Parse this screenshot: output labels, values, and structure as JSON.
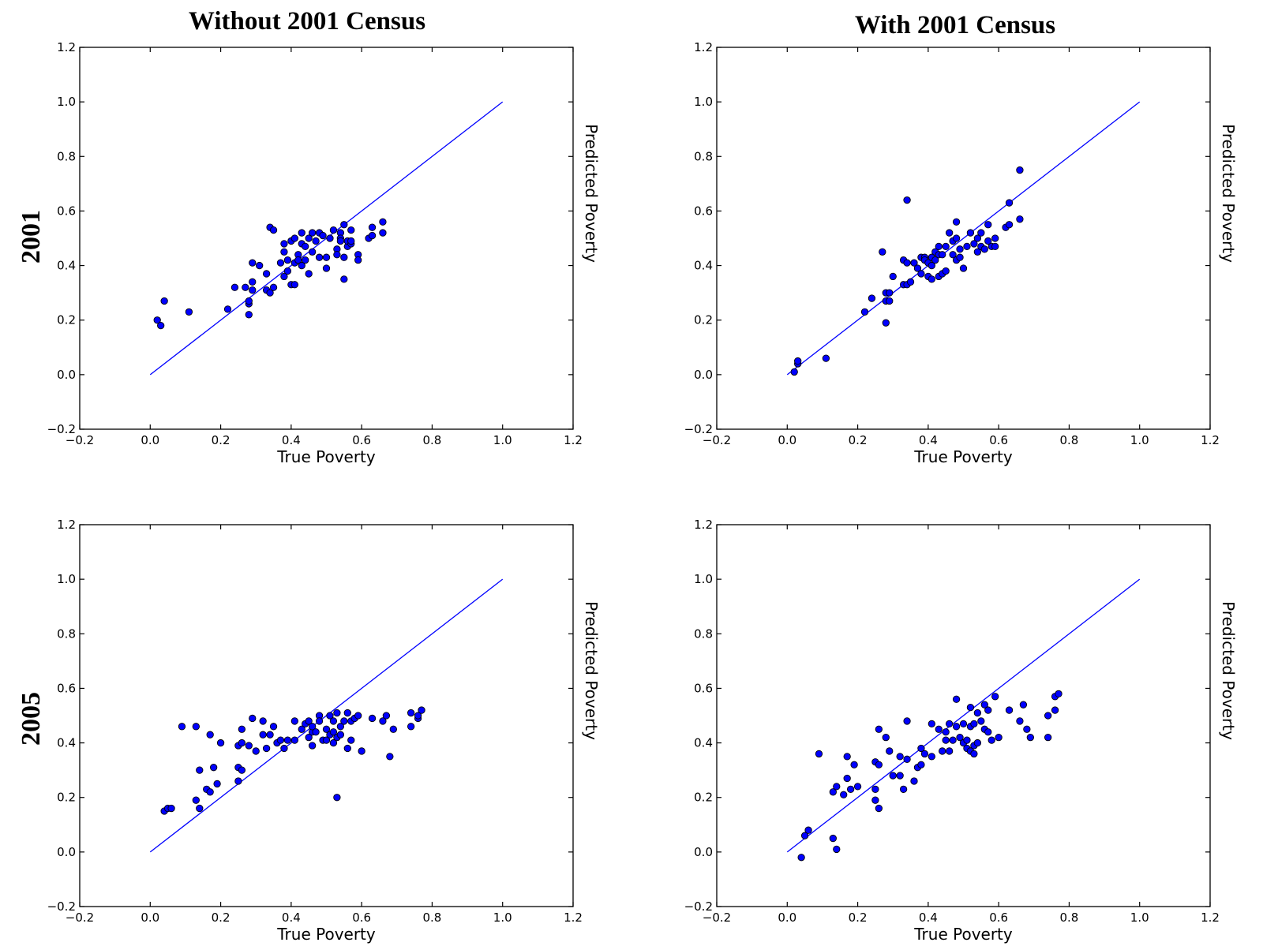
{
  "column_titles": [
    "Without 2001 Census",
    "With 2001 Census"
  ],
  "row_labels": [
    "2001",
    "2005"
  ],
  "colors": {
    "points": "#0000ff",
    "reference_line": "#0000ff",
    "point_edge": "#000000"
  },
  "chart_data": [
    {
      "type": "scatter",
      "title": "",
      "row": "2001",
      "column": "Without 2001 Census",
      "xlabel": "True Poverty",
      "ylabel": "Predicted Poverty",
      "xlim": [
        -0.2,
        1.2
      ],
      "ylim": [
        -0.2,
        1.2
      ],
      "xticks": [
        "−0.2",
        "0.0",
        "0.2",
        "0.4",
        "0.6",
        "0.8",
        "1.0",
        "1.2"
      ],
      "yticks": [
        "−0.2",
        "0.0",
        "0.2",
        "0.4",
        "0.6",
        "0.8",
        "1.0",
        "1.2"
      ],
      "reference_line": [
        [
          0,
          0
        ],
        [
          1,
          1
        ]
      ],
      "grid": false,
      "points": [
        [
          0.02,
          0.2
        ],
        [
          0.03,
          0.18
        ],
        [
          0.04,
          0.27
        ],
        [
          0.11,
          0.23
        ],
        [
          0.22,
          0.24
        ],
        [
          0.24,
          0.32
        ],
        [
          0.27,
          0.32
        ],
        [
          0.28,
          0.26
        ],
        [
          0.28,
          0.27
        ],
        [
          0.28,
          0.22
        ],
        [
          0.29,
          0.41
        ],
        [
          0.29,
          0.31
        ],
        [
          0.29,
          0.34
        ],
        [
          0.31,
          0.4
        ],
        [
          0.33,
          0.31
        ],
        [
          0.33,
          0.37
        ],
        [
          0.34,
          0.3
        ],
        [
          0.34,
          0.54
        ],
        [
          0.35,
          0.53
        ],
        [
          0.35,
          0.32
        ],
        [
          0.37,
          0.41
        ],
        [
          0.38,
          0.45
        ],
        [
          0.38,
          0.36
        ],
        [
          0.38,
          0.48
        ],
        [
          0.39,
          0.38
        ],
        [
          0.39,
          0.42
        ],
        [
          0.4,
          0.49
        ],
        [
          0.4,
          0.33
        ],
        [
          0.41,
          0.33
        ],
        [
          0.41,
          0.5
        ],
        [
          0.41,
          0.41
        ],
        [
          0.42,
          0.44
        ],
        [
          0.42,
          0.42
        ],
        [
          0.43,
          0.52
        ],
        [
          0.43,
          0.4
        ],
        [
          0.43,
          0.48
        ],
        [
          0.44,
          0.47
        ],
        [
          0.44,
          0.42
        ],
        [
          0.45,
          0.37
        ],
        [
          0.45,
          0.5
        ],
        [
          0.46,
          0.52
        ],
        [
          0.46,
          0.45
        ],
        [
          0.47,
          0.49
        ],
        [
          0.48,
          0.52
        ],
        [
          0.48,
          0.43
        ],
        [
          0.49,
          0.51
        ],
        [
          0.5,
          0.39
        ],
        [
          0.5,
          0.43
        ],
        [
          0.51,
          0.5
        ],
        [
          0.52,
          0.53
        ],
        [
          0.53,
          0.46
        ],
        [
          0.53,
          0.44
        ],
        [
          0.54,
          0.52
        ],
        [
          0.54,
          0.5
        ],
        [
          0.54,
          0.49
        ],
        [
          0.55,
          0.35
        ],
        [
          0.55,
          0.55
        ],
        [
          0.55,
          0.43
        ],
        [
          0.56,
          0.47
        ],
        [
          0.56,
          0.49
        ],
        [
          0.57,
          0.48
        ],
        [
          0.57,
          0.53
        ],
        [
          0.57,
          0.49
        ],
        [
          0.59,
          0.44
        ],
        [
          0.59,
          0.42
        ],
        [
          0.62,
          0.5
        ],
        [
          0.63,
          0.51
        ],
        [
          0.63,
          0.54
        ],
        [
          0.66,
          0.56
        ],
        [
          0.66,
          0.52
        ]
      ]
    },
    {
      "type": "scatter",
      "title": "",
      "row": "2001",
      "column": "With 2001 Census",
      "xlabel": "True Poverty",
      "ylabel": "Predicted Poverty",
      "xlim": [
        -0.2,
        1.2
      ],
      "ylim": [
        -0.2,
        1.2
      ],
      "xticks": [
        "−0.2",
        "0.0",
        "0.2",
        "0.4",
        "0.6",
        "0.8",
        "1.0",
        "1.2"
      ],
      "yticks": [
        "−0.2",
        "0.0",
        "0.2",
        "0.4",
        "0.6",
        "0.8",
        "1.0",
        "1.2"
      ],
      "reference_line": [
        [
          0,
          0
        ],
        [
          1,
          1
        ]
      ],
      "grid": false,
      "points": [
        [
          0.02,
          0.01
        ],
        [
          0.03,
          0.04
        ],
        [
          0.03,
          0.05
        ],
        [
          0.11,
          0.06
        ],
        [
          0.22,
          0.23
        ],
        [
          0.24,
          0.28
        ],
        [
          0.27,
          0.45
        ],
        [
          0.28,
          0.19
        ],
        [
          0.28,
          0.27
        ],
        [
          0.28,
          0.3
        ],
        [
          0.29,
          0.27
        ],
        [
          0.29,
          0.3
        ],
        [
          0.3,
          0.36
        ],
        [
          0.33,
          0.33
        ],
        [
          0.33,
          0.42
        ],
        [
          0.34,
          0.64
        ],
        [
          0.34,
          0.33
        ],
        [
          0.34,
          0.41
        ],
        [
          0.35,
          0.34
        ],
        [
          0.36,
          0.41
        ],
        [
          0.37,
          0.39
        ],
        [
          0.38,
          0.43
        ],
        [
          0.38,
          0.37
        ],
        [
          0.39,
          0.43
        ],
        [
          0.39,
          0.42
        ],
        [
          0.4,
          0.36
        ],
        [
          0.4,
          0.41
        ],
        [
          0.41,
          0.43
        ],
        [
          0.41,
          0.35
        ],
        [
          0.41,
          0.4
        ],
        [
          0.42,
          0.45
        ],
        [
          0.42,
          0.42
        ],
        [
          0.43,
          0.44
        ],
        [
          0.43,
          0.47
        ],
        [
          0.43,
          0.36
        ],
        [
          0.44,
          0.44
        ],
        [
          0.44,
          0.37
        ],
        [
          0.45,
          0.47
        ],
        [
          0.45,
          0.38
        ],
        [
          0.46,
          0.52
        ],
        [
          0.47,
          0.49
        ],
        [
          0.47,
          0.44
        ],
        [
          0.48,
          0.5
        ],
        [
          0.48,
          0.56
        ],
        [
          0.48,
          0.42
        ],
        [
          0.49,
          0.43
        ],
        [
          0.49,
          0.46
        ],
        [
          0.5,
          0.39
        ],
        [
          0.51,
          0.47
        ],
        [
          0.52,
          0.52
        ],
        [
          0.53,
          0.48
        ],
        [
          0.54,
          0.45
        ],
        [
          0.54,
          0.5
        ],
        [
          0.55,
          0.47
        ],
        [
          0.55,
          0.52
        ],
        [
          0.56,
          0.46
        ],
        [
          0.57,
          0.55
        ],
        [
          0.57,
          0.49
        ],
        [
          0.58,
          0.47
        ],
        [
          0.59,
          0.5
        ],
        [
          0.59,
          0.47
        ],
        [
          0.62,
          0.54
        ],
        [
          0.63,
          0.55
        ],
        [
          0.63,
          0.63
        ],
        [
          0.66,
          0.75
        ],
        [
          0.66,
          0.57
        ]
      ]
    },
    {
      "type": "scatter",
      "title": "",
      "row": "2005",
      "column": "Without 2001 Census",
      "xlabel": "True Poverty",
      "ylabel": "Predicted Poverty",
      "xlim": [
        -0.2,
        1.2
      ],
      "ylim": [
        -0.2,
        1.2
      ],
      "xticks": [
        "−0.2",
        "0.0",
        "0.2",
        "0.4",
        "0.6",
        "0.8",
        "1.0",
        "1.2"
      ],
      "yticks": [
        "−0.2",
        "0.0",
        "0.2",
        "0.4",
        "0.6",
        "0.8",
        "1.0",
        "1.2"
      ],
      "reference_line": [
        [
          0,
          0
        ],
        [
          1,
          1
        ]
      ],
      "grid": false,
      "points": [
        [
          0.04,
          0.15
        ],
        [
          0.05,
          0.16
        ],
        [
          0.06,
          0.16
        ],
        [
          0.09,
          0.46
        ],
        [
          0.13,
          0.19
        ],
        [
          0.13,
          0.46
        ],
        [
          0.14,
          0.3
        ],
        [
          0.14,
          0.16
        ],
        [
          0.16,
          0.23
        ],
        [
          0.17,
          0.43
        ],
        [
          0.17,
          0.22
        ],
        [
          0.18,
          0.31
        ],
        [
          0.19,
          0.25
        ],
        [
          0.2,
          0.4
        ],
        [
          0.25,
          0.26
        ],
        [
          0.25,
          0.31
        ],
        [
          0.25,
          0.39
        ],
        [
          0.26,
          0.4
        ],
        [
          0.26,
          0.3
        ],
        [
          0.26,
          0.45
        ],
        [
          0.28,
          0.39
        ],
        [
          0.29,
          0.49
        ],
        [
          0.3,
          0.37
        ],
        [
          0.32,
          0.48
        ],
        [
          0.32,
          0.43
        ],
        [
          0.33,
          0.38
        ],
        [
          0.34,
          0.43
        ],
        [
          0.35,
          0.46
        ],
        [
          0.36,
          0.4
        ],
        [
          0.37,
          0.41
        ],
        [
          0.38,
          0.38
        ],
        [
          0.39,
          0.41
        ],
        [
          0.41,
          0.48
        ],
        [
          0.41,
          0.41
        ],
        [
          0.43,
          0.45
        ],
        [
          0.44,
          0.47
        ],
        [
          0.45,
          0.42
        ],
        [
          0.45,
          0.48
        ],
        [
          0.46,
          0.44
        ],
        [
          0.46,
          0.39
        ],
        [
          0.46,
          0.46
        ],
        [
          0.47,
          0.44
        ],
        [
          0.48,
          0.5
        ],
        [
          0.48,
          0.48
        ],
        [
          0.49,
          0.41
        ],
        [
          0.5,
          0.45
        ],
        [
          0.5,
          0.41
        ],
        [
          0.51,
          0.5
        ],
        [
          0.51,
          0.43
        ],
        [
          0.52,
          0.44
        ],
        [
          0.52,
          0.4
        ],
        [
          0.52,
          0.48
        ],
        [
          0.53,
          0.51
        ],
        [
          0.53,
          0.2
        ],
        [
          0.53,
          0.42
        ],
        [
          0.54,
          0.46
        ],
        [
          0.54,
          0.43
        ],
        [
          0.55,
          0.48
        ],
        [
          0.56,
          0.38
        ],
        [
          0.56,
          0.51
        ],
        [
          0.57,
          0.41
        ],
        [
          0.57,
          0.48
        ],
        [
          0.58,
          0.49
        ],
        [
          0.59,
          0.5
        ],
        [
          0.6,
          0.37
        ],
        [
          0.63,
          0.49
        ],
        [
          0.66,
          0.48
        ],
        [
          0.67,
          0.5
        ],
        [
          0.68,
          0.35
        ],
        [
          0.69,
          0.45
        ],
        [
          0.74,
          0.46
        ],
        [
          0.74,
          0.51
        ],
        [
          0.76,
          0.49
        ],
        [
          0.76,
          0.5
        ],
        [
          0.77,
          0.52
        ]
      ]
    },
    {
      "type": "scatter",
      "title": "",
      "row": "2005",
      "column": "With 2001 Census",
      "xlabel": "True Poverty",
      "ylabel": "Predicted Poverty",
      "xlim": [
        -0.2,
        1.2
      ],
      "ylim": [
        -0.2,
        1.2
      ],
      "xticks": [
        "−0.2",
        "0.0",
        "0.2",
        "0.4",
        "0.6",
        "0.8",
        "1.0",
        "1.2"
      ],
      "yticks": [
        "−0.2",
        "0.0",
        "0.2",
        "0.4",
        "0.6",
        "0.8",
        "1.0",
        "1.2"
      ],
      "reference_line": [
        [
          0,
          0
        ],
        [
          1,
          1
        ]
      ],
      "grid": false,
      "points": [
        [
          0.04,
          -0.02
        ],
        [
          0.05,
          0.06
        ],
        [
          0.06,
          0.08
        ],
        [
          0.09,
          0.36
        ],
        [
          0.13,
          0.22
        ],
        [
          0.13,
          0.05
        ],
        [
          0.14,
          0.24
        ],
        [
          0.14,
          0.01
        ],
        [
          0.16,
          0.21
        ],
        [
          0.17,
          0.35
        ],
        [
          0.17,
          0.27
        ],
        [
          0.18,
          0.23
        ],
        [
          0.19,
          0.32
        ],
        [
          0.2,
          0.24
        ],
        [
          0.25,
          0.23
        ],
        [
          0.25,
          0.19
        ],
        [
          0.25,
          0.33
        ],
        [
          0.26,
          0.32
        ],
        [
          0.26,
          0.16
        ],
        [
          0.26,
          0.45
        ],
        [
          0.28,
          0.42
        ],
        [
          0.29,
          0.37
        ],
        [
          0.3,
          0.28
        ],
        [
          0.32,
          0.35
        ],
        [
          0.32,
          0.28
        ],
        [
          0.33,
          0.23
        ],
        [
          0.34,
          0.34
        ],
        [
          0.34,
          0.48
        ],
        [
          0.36,
          0.26
        ],
        [
          0.37,
          0.31
        ],
        [
          0.38,
          0.32
        ],
        [
          0.38,
          0.38
        ],
        [
          0.39,
          0.36
        ],
        [
          0.41,
          0.47
        ],
        [
          0.41,
          0.35
        ],
        [
          0.43,
          0.45
        ],
        [
          0.44,
          0.37
        ],
        [
          0.45,
          0.41
        ],
        [
          0.45,
          0.44
        ],
        [
          0.46,
          0.47
        ],
        [
          0.46,
          0.37
        ],
        [
          0.47,
          0.41
        ],
        [
          0.48,
          0.56
        ],
        [
          0.48,
          0.46
        ],
        [
          0.49,
          0.42
        ],
        [
          0.5,
          0.47
        ],
        [
          0.5,
          0.4
        ],
        [
          0.51,
          0.41
        ],
        [
          0.51,
          0.38
        ],
        [
          0.52,
          0.37
        ],
        [
          0.52,
          0.46
        ],
        [
          0.52,
          0.53
        ],
        [
          0.53,
          0.39
        ],
        [
          0.53,
          0.47
        ],
        [
          0.53,
          0.36
        ],
        [
          0.54,
          0.4
        ],
        [
          0.54,
          0.51
        ],
        [
          0.55,
          0.48
        ],
        [
          0.56,
          0.45
        ],
        [
          0.56,
          0.54
        ],
        [
          0.57,
          0.44
        ],
        [
          0.57,
          0.52
        ],
        [
          0.58,
          0.41
        ],
        [
          0.59,
          0.57
        ],
        [
          0.6,
          0.42
        ],
        [
          0.63,
          0.52
        ],
        [
          0.66,
          0.48
        ],
        [
          0.67,
          0.54
        ],
        [
          0.68,
          0.45
        ],
        [
          0.69,
          0.42
        ],
        [
          0.74,
          0.42
        ],
        [
          0.74,
          0.5
        ],
        [
          0.76,
          0.57
        ],
        [
          0.76,
          0.52
        ],
        [
          0.77,
          0.58
        ]
      ]
    }
  ]
}
